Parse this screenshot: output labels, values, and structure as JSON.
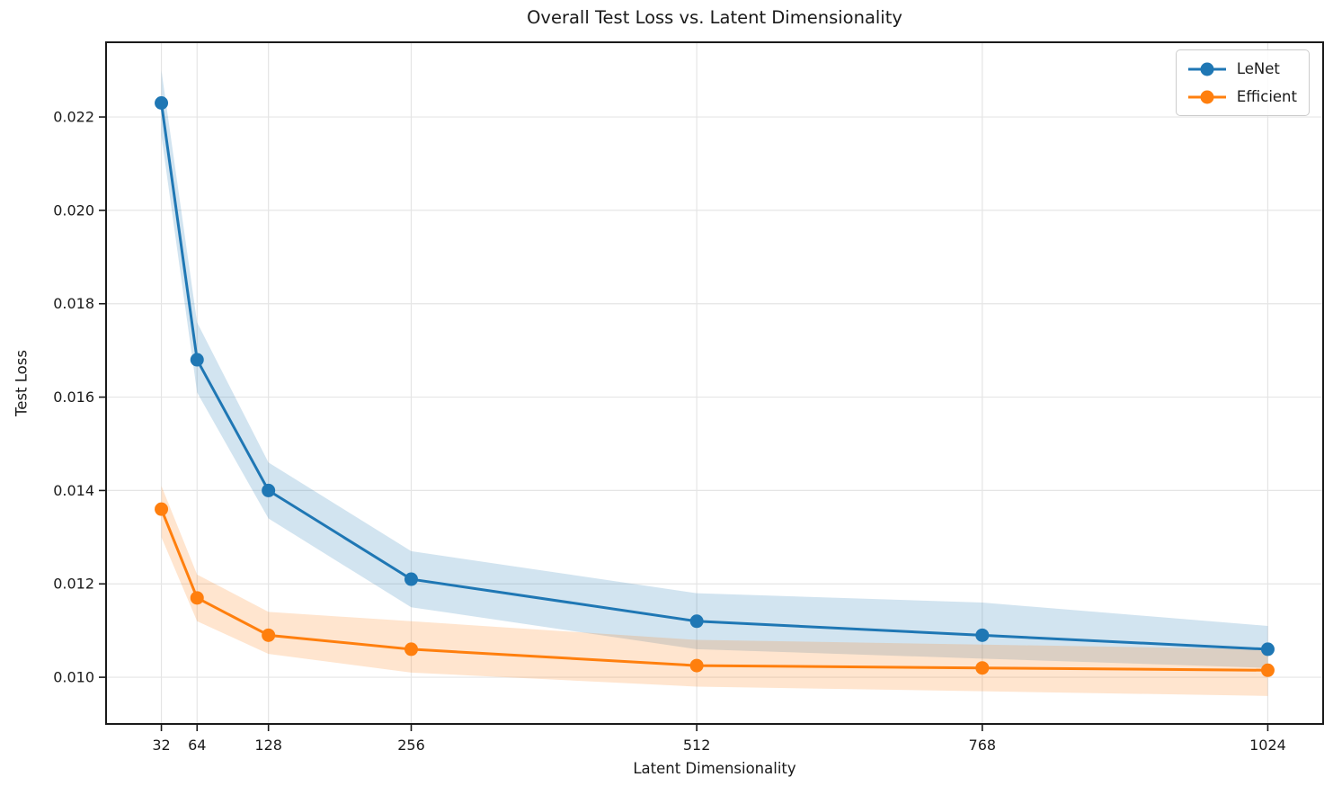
{
  "chart_data": {
    "type": "line",
    "title": "Overall Test Loss vs. Latent Dimensionality",
    "xlabel": "Latent Dimensionality",
    "ylabel": "Test Loss",
    "x": [
      32,
      64,
      128,
      256,
      512,
      768,
      1024
    ],
    "xtick_labels": [
      "32",
      "64",
      "128",
      "256",
      "512",
      "768",
      "1024"
    ],
    "yticks": [
      0.01,
      0.012,
      0.014,
      0.016,
      0.018,
      0.02,
      0.022
    ],
    "ytick_labels": [
      "0.010",
      "0.012",
      "0.014",
      "0.016",
      "0.018",
      "0.020",
      "0.022"
    ],
    "xlim": [
      -17.6,
      1073.6
    ],
    "ylim": [
      0.009,
      0.0236
    ],
    "grid": true,
    "legend_position": "upper right",
    "band_opacity": 0.2,
    "series": [
      {
        "name": "LeNet",
        "color": "#1f77b4",
        "mean": [
          0.0223,
          0.0168,
          0.014,
          0.0121,
          0.0112,
          0.0109,
          0.0106
        ],
        "upper": [
          0.023,
          0.0176,
          0.0146,
          0.0127,
          0.0118,
          0.0116,
          0.0111
        ],
        "lower": [
          0.0216,
          0.0161,
          0.0134,
          0.0115,
          0.0106,
          0.0104,
          0.0102
        ]
      },
      {
        "name": "Efficient",
        "color": "#ff7f0e",
        "mean": [
          0.0136,
          0.0117,
          0.0109,
          0.0106,
          0.01025,
          0.0102,
          0.01015
        ],
        "upper": [
          0.0141,
          0.0122,
          0.0114,
          0.0112,
          0.0108,
          0.0107,
          0.0106
        ],
        "lower": [
          0.013,
          0.0112,
          0.0105,
          0.0101,
          0.0098,
          0.0097,
          0.0096
        ]
      }
    ],
    "axis_color": "#1a1a1a",
    "grid_color": "#e5e5e5"
  }
}
